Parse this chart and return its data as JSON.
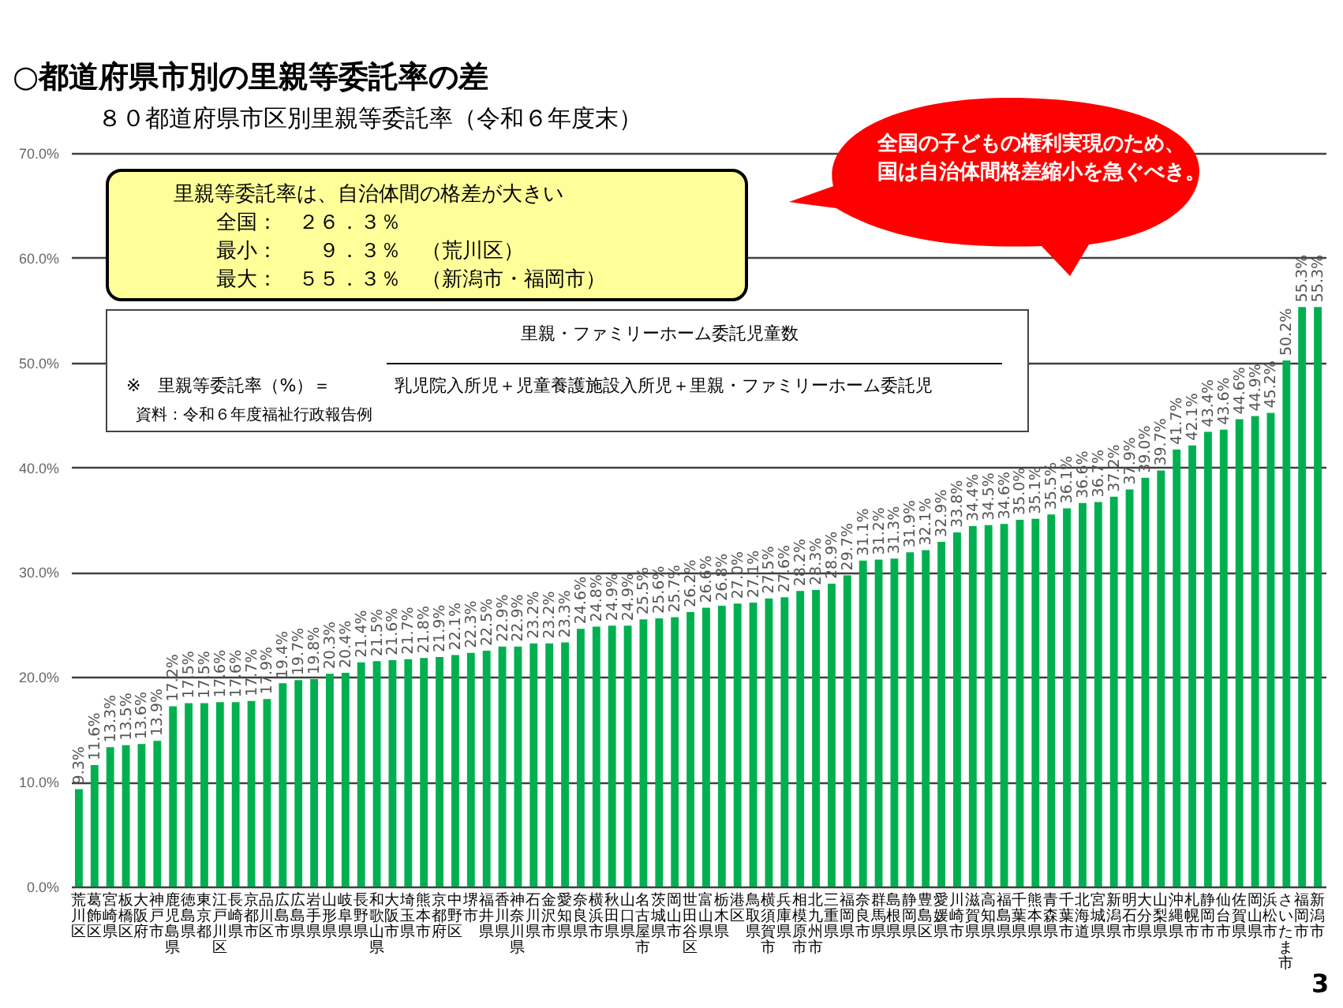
{
  "chart_data": {
    "type": "bar",
    "title": "○都道府県市別の里親等委託率の差",
    "subtitle": "８０都道府県市区別里親等委託率（令和６年度末）",
    "categories": [
      "荒川区",
      "葛飾区",
      "宮崎県",
      "板橋区",
      "大阪府",
      "神戸市",
      "鹿児島県",
      "徳島県",
      "東京都",
      "江戸川区",
      "長崎県",
      "京都市",
      "品川区",
      "広島市",
      "広島県",
      "岩手県",
      "山形県",
      "岐阜県",
      "長野県",
      "和歌山県",
      "大阪市",
      "埼玉県",
      "熊本市",
      "京都府",
      "中野区",
      "堺市",
      "福井県",
      "香川県",
      "神奈川県",
      "石川県",
      "金沢市",
      "愛知県",
      "奈良県",
      "横浜市",
      "秋田県",
      "山口県",
      "名古屋市",
      "茨城県",
      "岡山市",
      "世田谷区",
      "富山県",
      "栃木県",
      "港区",
      "鳥取県",
      "横須賀市",
      "兵庫県",
      "相模原市",
      "北九州市",
      "三重県",
      "福岡県",
      "奈良市",
      "群馬県",
      "島根県",
      "静岡県",
      "豊島区",
      "愛媛県",
      "川崎市",
      "滋賀県",
      "高知県",
      "福島県",
      "千葉県",
      "熊本県",
      "青森県",
      "千葉市",
      "北海道",
      "宮城県",
      "新潟県",
      "明石市",
      "大分県",
      "山梨県",
      "沖縄県",
      "札幌市",
      "静岡市",
      "仙台市",
      "佐賀県",
      "岡山県",
      "浜松市",
      "さいたま市",
      "福岡市",
      "新潟市"
    ],
    "values": [
      9.3,
      11.6,
      13.3,
      13.5,
      13.6,
      13.9,
      17.2,
      17.5,
      17.5,
      17.6,
      17.6,
      17.7,
      17.9,
      19.4,
      19.7,
      19.8,
      20.3,
      20.4,
      21.4,
      21.5,
      21.6,
      21.7,
      21.8,
      21.9,
      22.1,
      22.3,
      22.5,
      22.9,
      22.9,
      23.2,
      23.2,
      23.3,
      24.6,
      24.8,
      24.9,
      24.9,
      25.5,
      25.6,
      25.7,
      26.2,
      26.6,
      26.8,
      27.0,
      27.1,
      27.5,
      27.6,
      28.2,
      28.3,
      28.9,
      29.7,
      31.1,
      31.2,
      31.3,
      31.9,
      32.1,
      32.9,
      33.8,
      34.4,
      34.5,
      34.6,
      35.0,
      35.1,
      35.5,
      36.1,
      36.6,
      36.7,
      37.2,
      37.9,
      39.0,
      39.7,
      41.7,
      42.1,
      43.4,
      43.6,
      44.6,
      44.9,
      45.2,
      50.2,
      55.3,
      55.3
    ],
    "value_labels": [
      "9.3%",
      "11.6%",
      "13.3%",
      "13.5%",
      "13.6%",
      "13.9%",
      "17.2%",
      "17.5%",
      "17.5%",
      "17.6%",
      "17.6%",
      "17.7%",
      "17.9%",
      "19.4%",
      "19.7%",
      "19.8%",
      "20.3%",
      "20.4%",
      "21.4%",
      "21.5%",
      "21.6%",
      "21.7%",
      "21.8%",
      "21.9%",
      "22.1%",
      "22.3%",
      "22.5%",
      "22.9%",
      "22.9%",
      "23.2%",
      "23.2%",
      "23.3%",
      "24.6%",
      "24.8%",
      "24.9%",
      "24.9%",
      "25.5%",
      "25.6%",
      "25.7%",
      "26.2%",
      "26.6%",
      "26.8%",
      "27.0%",
      "27.1%",
      "27.5%",
      "27.6%",
      "28.2%",
      "28.3%",
      "28.9%",
      "29.7%",
      "31.1%",
      "31.2%",
      "31.3%",
      "31.9%",
      "32.1%",
      "32.9%",
      "33.8%",
      "34.4%",
      "34.5%",
      "34.6%",
      "35.0%",
      "35.1%",
      "35.5%",
      "36.1%",
      "36.6%",
      "36.7%",
      "37.2%",
      "37.9%",
      "39.0%",
      "39.7%",
      "41.7%",
      "42.1%",
      "43.4%",
      "43.6%",
      "44.6%",
      "44.9%",
      "45.2%",
      "50.2%",
      "55.3%",
      "55.3%"
    ],
    "color": "#00b050",
    "ylim": [
      0,
      70
    ],
    "yticks": [
      {
        "value": 0,
        "label": "0.0%"
      },
      {
        "value": 10,
        "label": "10.0%"
      },
      {
        "value": 20,
        "label": "20.0%"
      },
      {
        "value": 30,
        "label": "30.0%"
      },
      {
        "value": 40,
        "label": "40.0%"
      },
      {
        "value": 50,
        "label": "50.0%"
      },
      {
        "value": 60,
        "label": "60.0%"
      },
      {
        "value": 70,
        "label": "70.0%"
      }
    ],
    "grid": "y",
    "annotations": [
      "里親等委託率は、自治体間の格差が大きい",
      "全国：　２６．３％",
      "最小：　　９．３％　（荒川区）",
      "最大：　５５．３％　（新潟市・福岡市）",
      "※　里親等委託率（%）＝",
      "里親・ファミリーホーム委託児童数",
      "乳児院入所児＋児童養護施設入所児＋里親・ファミリーホーム委託児",
      "資料：令和６年度福祉行政報告例",
      "全国の子どもの権利実現のため、",
      "国は自治体間格差縮小を急ぐべき。",
      "3"
    ]
  }
}
